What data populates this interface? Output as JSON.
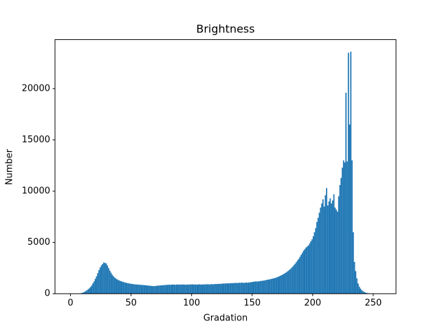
{
  "chart_data": {
    "type": "histogram",
    "title": "Brightness",
    "x_label": "Gradation",
    "y_label": "Number",
    "color": "#1f77b4",
    "bins": [
      0,
      1,
      2,
      3,
      4,
      5,
      6,
      7,
      8,
      9,
      10,
      11,
      12,
      13,
      14,
      15,
      16,
      17,
      18,
      19,
      20,
      21,
      22,
      23,
      24,
      25,
      26,
      27,
      28,
      29,
      30,
      31,
      32,
      33,
      34,
      35,
      36,
      37,
      38,
      39,
      40,
      41,
      42,
      43,
      44,
      45,
      46,
      47,
      48,
      49,
      50,
      51,
      52,
      53,
      54,
      55,
      56,
      57,
      58,
      59,
      60,
      61,
      62,
      63,
      64,
      65,
      66,
      67,
      68,
      69,
      70,
      71,
      72,
      73,
      74,
      75,
      76,
      77,
      78,
      79,
      80,
      81,
      82,
      83,
      84,
      85,
      86,
      87,
      88,
      89,
      90,
      91,
      92,
      93,
      94,
      95,
      96,
      97,
      98,
      99,
      100,
      101,
      102,
      103,
      104,
      105,
      106,
      107,
      108,
      109,
      110,
      111,
      112,
      113,
      114,
      115,
      116,
      117,
      118,
      119,
      120,
      121,
      122,
      123,
      124,
      125,
      126,
      127,
      128,
      129,
      130,
      131,
      132,
      133,
      134,
      135,
      136,
      137,
      138,
      139,
      140,
      141,
      142,
      143,
      144,
      145,
      146,
      147,
      148,
      149,
      150,
      151,
      152,
      153,
      154,
      155,
      156,
      157,
      158,
      159,
      160,
      161,
      162,
      163,
      164,
      165,
      166,
      167,
      168,
      169,
      170,
      171,
      172,
      173,
      174,
      175,
      176,
      177,
      178,
      179,
      180,
      181,
      182,
      183,
      184,
      185,
      186,
      187,
      188,
      189,
      190,
      191,
      192,
      193,
      194,
      195,
      196,
      197,
      198,
      199,
      200,
      201,
      202,
      203,
      204,
      205,
      206,
      207,
      208,
      209,
      210,
      211,
      212,
      213,
      214,
      215,
      216,
      217,
      218,
      219,
      220,
      221,
      222,
      223,
      224,
      225,
      226,
      227,
      228,
      229,
      230,
      231,
      232,
      233,
      234,
      235,
      236,
      237,
      238,
      239,
      240,
      241,
      242,
      243,
      244,
      245,
      246,
      247,
      248,
      249,
      250,
      251,
      252,
      253,
      254,
      255,
      256
    ],
    "values": [
      0,
      0,
      0,
      0,
      0,
      5,
      10,
      20,
      40,
      80,
      120,
      180,
      250,
      330,
      420,
      520,
      650,
      800,
      1000,
      1200,
      1450,
      1700,
      2000,
      2300,
      2550,
      2750,
      2900,
      3050,
      3000,
      2950,
      2750,
      2500,
      2250,
      2050,
      1850,
      1700,
      1580,
      1480,
      1400,
      1330,
      1280,
      1230,
      1190,
      1150,
      1110,
      1080,
      1050,
      1020,
      1000,
      980,
      960,
      940,
      920,
      910,
      900,
      890,
      880,
      870,
      860,
      850,
      840,
      830,
      820,
      800,
      790,
      780,
      760,
      750,
      740,
      740,
      760,
      780,
      790,
      800,
      810,
      820,
      830,
      840,
      850,
      860,
      870,
      880,
      860,
      890,
      880,
      900,
      870,
      890,
      900,
      880,
      890,
      900,
      880,
      910,
      890,
      870,
      900,
      880,
      910,
      900,
      920,
      890,
      910,
      900,
      880,
      900,
      920,
      890,
      900,
      910,
      900,
      920,
      910,
      930,
      900,
      920,
      940,
      910,
      930,
      950,
      940,
      960,
      950,
      970,
      960,
      980,
      1000,
      990,
      1010,
      1000,
      1020,
      1010,
      1030,
      1040,
      1020,
      1050,
      1060,
      1040,
      1050,
      1070,
      1060,
      1080,
      1070,
      1050,
      1080,
      1090,
      1070,
      1100,
      1110,
      1130,
      1150,
      1170,
      1190,
      1200,
      1180,
      1210,
      1230,
      1250,
      1260,
      1280,
      1300,
      1330,
      1360,
      1380,
      1400,
      1430,
      1460,
      1490,
      1520,
      1560,
      1600,
      1650,
      1700,
      1760,
      1820,
      1880,
      1950,
      2030,
      2110,
      2200,
      2300,
      2400,
      2520,
      2640,
      2780,
      2920,
      3080,
      3250,
      3400,
      3600,
      3800,
      4000,
      4200,
      4350,
      4500,
      4600,
      4700,
      4900,
      5100,
      5300,
      5600,
      6000,
      6400,
      7000,
      7400,
      7900,
      8400,
      8800,
      9200,
      8500,
      9600,
      10300,
      8600,
      9000,
      9300,
      8800,
      9100,
      9700,
      8400,
      8200,
      8000,
      9500,
      10600,
      11300,
      12300,
      13000,
      12800,
      19600,
      12900,
      23500,
      16500,
      23600,
      13000,
      6000,
      3100,
      2200,
      1500,
      1000,
      700,
      500,
      350,
      250,
      180,
      120,
      80,
      50,
      30,
      20,
      10,
      5,
      2,
      0,
      0,
      0,
      0,
      0
    ],
    "xlim": [
      -12.8,
      268.8
    ],
    "xticks": [
      0,
      50,
      100,
      150,
      200,
      250
    ],
    "ylim": [
      0,
      24780
    ],
    "yticks": [
      0,
      5000,
      10000,
      15000,
      20000
    ]
  }
}
